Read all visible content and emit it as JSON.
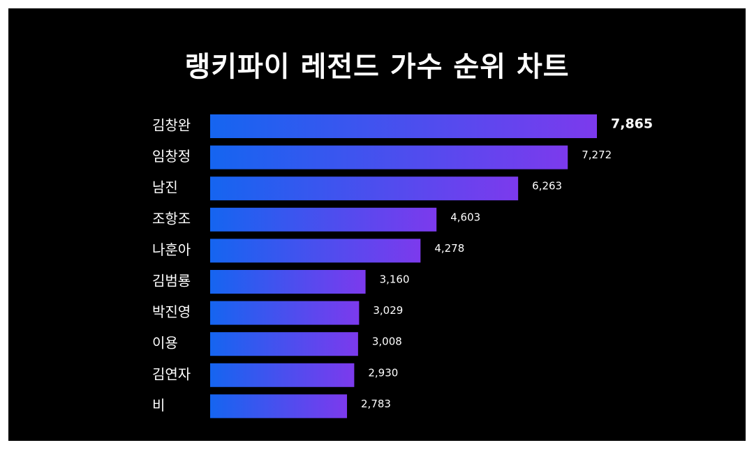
{
  "chart_data": {
    "type": "bar",
    "orientation": "horizontal",
    "title": "랭키파이 레전드 가수 순위 차트",
    "categories": [
      "김창완",
      "임창정",
      "남진",
      "조항조",
      "나훈아",
      "김범룡",
      "박진영",
      "이용",
      "김연자",
      "비"
    ],
    "values": [
      7865,
      7272,
      6263,
      4603,
      4278,
      3160,
      3029,
      3008,
      2930,
      2783
    ],
    "value_labels": [
      "7,865",
      "7,272",
      "6,263",
      "4,603",
      "4,278",
      "3,160",
      "3,029",
      "3,008",
      "2,930",
      "2,783"
    ],
    "xlim": [
      0,
      7865
    ],
    "grid": false,
    "legend": "none",
    "colors": {
      "background": "#000000",
      "bar_gradient_start": "#1565f0",
      "bar_gradient_end": "#7c3aed",
      "text": "#ffffff"
    }
  }
}
